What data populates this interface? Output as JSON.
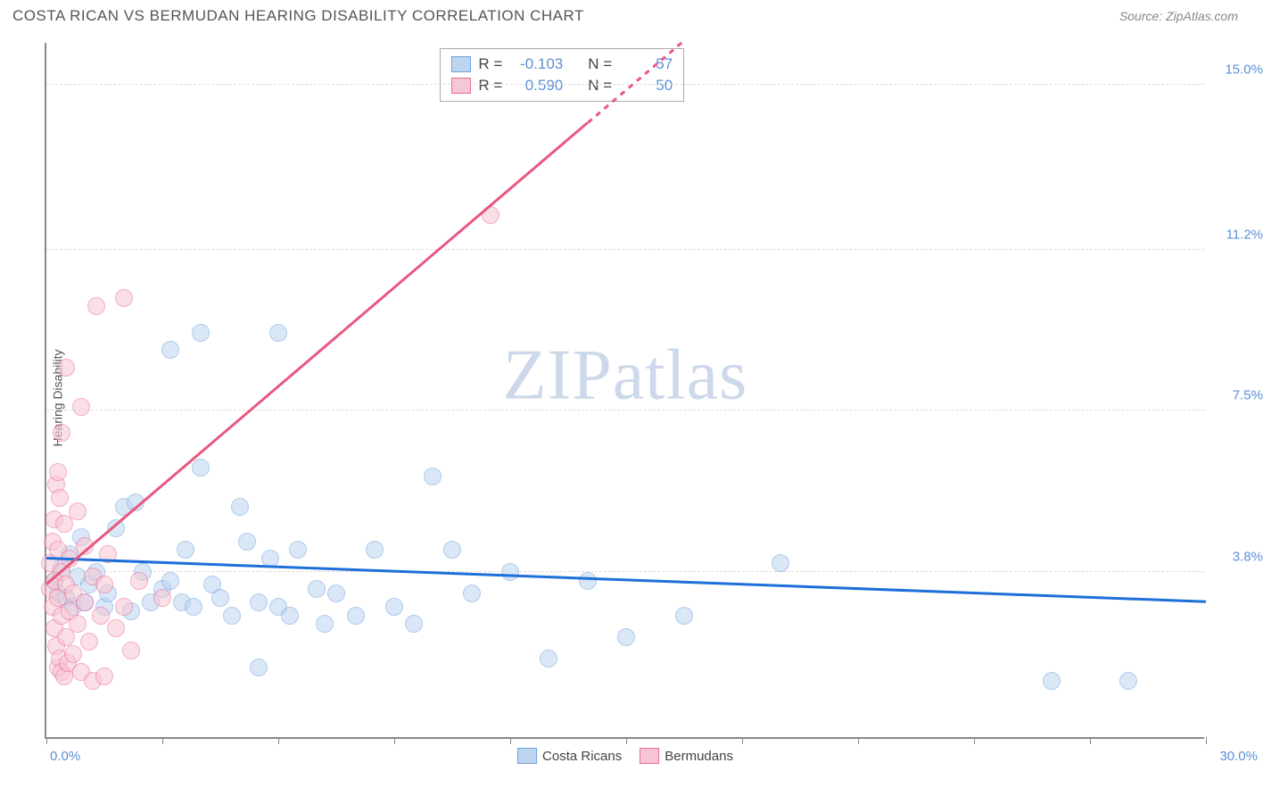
{
  "title": "COSTA RICAN VS BERMUDAN HEARING DISABILITY CORRELATION CHART",
  "source": "Source: ZipAtlas.com",
  "y_axis_label": "Hearing Disability",
  "watermark": {
    "part1": "ZIP",
    "part2": "atlas"
  },
  "chart": {
    "type": "scatter",
    "xlim": [
      0,
      30
    ],
    "ylim": [
      0,
      16
    ],
    "x_ticks": [
      0,
      3,
      6,
      9,
      12,
      15,
      18,
      21,
      24,
      27,
      30
    ],
    "x_tick_labels": {
      "left": "0.0%",
      "right": "30.0%"
    },
    "y_gridlines": [
      3.8,
      7.5,
      11.2,
      15.0
    ],
    "y_tick_labels": [
      "3.8%",
      "7.5%",
      "11.2%",
      "15.0%"
    ],
    "grid_color": "#dddddd",
    "axis_color": "#888888",
    "tick_label_color": "#5b8fd6",
    "background_color": "#ffffff",
    "marker_radius": 10,
    "marker_opacity": 0.55
  },
  "series": [
    {
      "name": "Costa Ricans",
      "color_fill": "#bcd4f0",
      "color_stroke": "#6fa3dd",
      "trend_color": "#1e6fd9",
      "trend": {
        "x1": 0,
        "y1": 4.1,
        "x2": 30,
        "y2": 3.1,
        "width": 2.5,
        "dashed_after_x": null
      },
      "R": "-0.103",
      "N": "57",
      "points": [
        [
          0.2,
          3.6
        ],
        [
          0.3,
          3.3
        ],
        [
          0.4,
          3.9
        ],
        [
          0.5,
          3.2
        ],
        [
          0.6,
          4.2
        ],
        [
          0.7,
          3.0
        ],
        [
          0.8,
          3.7
        ],
        [
          0.9,
          4.6
        ],
        [
          1.0,
          3.1
        ],
        [
          1.1,
          3.5
        ],
        [
          1.3,
          3.8
        ],
        [
          1.5,
          3.0
        ],
        [
          1.6,
          3.3
        ],
        [
          1.8,
          4.8
        ],
        [
          2.0,
          5.3
        ],
        [
          2.2,
          2.9
        ],
        [
          2.3,
          5.4
        ],
        [
          2.5,
          3.8
        ],
        [
          2.7,
          3.1
        ],
        [
          3.0,
          3.4
        ],
        [
          3.2,
          8.9
        ],
        [
          3.2,
          3.6
        ],
        [
          3.5,
          3.1
        ],
        [
          3.6,
          4.3
        ],
        [
          3.8,
          3.0
        ],
        [
          4.0,
          6.2
        ],
        [
          4.0,
          9.3
        ],
        [
          4.3,
          3.5
        ],
        [
          4.5,
          3.2
        ],
        [
          4.8,
          2.8
        ],
        [
          5.0,
          5.3
        ],
        [
          5.2,
          4.5
        ],
        [
          5.5,
          1.6
        ],
        [
          5.5,
          3.1
        ],
        [
          5.8,
          4.1
        ],
        [
          6.0,
          9.3
        ],
        [
          6.0,
          3.0
        ],
        [
          6.3,
          2.8
        ],
        [
          6.5,
          4.3
        ],
        [
          7.0,
          3.4
        ],
        [
          7.2,
          2.6
        ],
        [
          7.5,
          3.3
        ],
        [
          8.0,
          2.8
        ],
        [
          8.5,
          4.3
        ],
        [
          9.0,
          3.0
        ],
        [
          9.5,
          2.6
        ],
        [
          10.0,
          6.0
        ],
        [
          10.5,
          4.3
        ],
        [
          11.0,
          3.3
        ],
        [
          12.0,
          3.8
        ],
        [
          13.0,
          1.8
        ],
        [
          14.0,
          3.6
        ],
        [
          15.0,
          2.3
        ],
        [
          16.5,
          2.8
        ],
        [
          19.0,
          4.0
        ],
        [
          26.0,
          1.3
        ],
        [
          28.0,
          1.3
        ]
      ]
    },
    {
      "name": "Bermudans",
      "color_fill": "#f7c6d4",
      "color_stroke": "#ec6b93",
      "trend_color": "#e9577f",
      "trend": {
        "x1": 0,
        "y1": 3.5,
        "x2": 16.5,
        "y2": 16.0,
        "width": 2.5,
        "dashed_after_x": 14.0
      },
      "R": "0.590",
      "N": "50",
      "points": [
        [
          0.1,
          3.4
        ],
        [
          0.1,
          4.0
        ],
        [
          0.15,
          3.0
        ],
        [
          0.15,
          4.5
        ],
        [
          0.2,
          2.5
        ],
        [
          0.2,
          3.6
        ],
        [
          0.2,
          5.0
        ],
        [
          0.25,
          2.1
        ],
        [
          0.25,
          5.8
        ],
        [
          0.3,
          1.6
        ],
        [
          0.3,
          3.2
        ],
        [
          0.3,
          4.3
        ],
        [
          0.3,
          6.1
        ],
        [
          0.35,
          1.8
        ],
        [
          0.35,
          5.5
        ],
        [
          0.4,
          1.5
        ],
        [
          0.4,
          2.8
        ],
        [
          0.4,
          3.8
        ],
        [
          0.4,
          7.0
        ],
        [
          0.45,
          1.4
        ],
        [
          0.45,
          4.9
        ],
        [
          0.5,
          2.3
        ],
        [
          0.5,
          3.5
        ],
        [
          0.5,
          8.5
        ],
        [
          0.55,
          1.7
        ],
        [
          0.6,
          2.9
        ],
        [
          0.6,
          4.1
        ],
        [
          0.7,
          1.9
        ],
        [
          0.7,
          3.3
        ],
        [
          0.8,
          2.6
        ],
        [
          0.8,
          5.2
        ],
        [
          0.9,
          1.5
        ],
        [
          0.9,
          7.6
        ],
        [
          1.0,
          3.1
        ],
        [
          1.0,
          4.4
        ],
        [
          1.1,
          2.2
        ],
        [
          1.2,
          1.3
        ],
        [
          1.2,
          3.7
        ],
        [
          1.3,
          9.9
        ],
        [
          1.4,
          2.8
        ],
        [
          1.5,
          1.4
        ],
        [
          1.5,
          3.5
        ],
        [
          1.6,
          4.2
        ],
        [
          1.8,
          2.5
        ],
        [
          2.0,
          10.1
        ],
        [
          2.0,
          3.0
        ],
        [
          2.2,
          2.0
        ],
        [
          2.4,
          3.6
        ],
        [
          3.0,
          3.2
        ],
        [
          11.5,
          12.0
        ]
      ]
    }
  ],
  "legend_top": {
    "labels": {
      "r": "R =",
      "n": "N ="
    }
  },
  "legend_bottom": [
    {
      "label": "Costa Ricans",
      "fill": "#bcd4f0",
      "stroke": "#6fa3dd"
    },
    {
      "label": "Bermudans",
      "fill": "#f7c6d4",
      "stroke": "#ec6b93"
    }
  ]
}
